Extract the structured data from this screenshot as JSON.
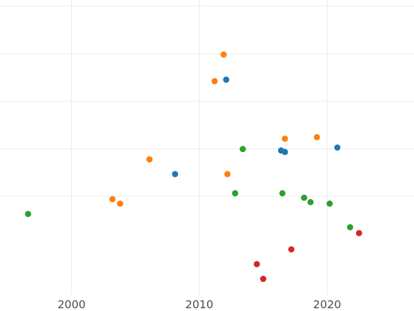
{
  "chart_data": {
    "type": "scatter",
    "title": "",
    "xlabel": "",
    "ylabel": "",
    "xlim": [
      1994.4,
      2026.8
    ],
    "ylim": [
      0,
      10
    ],
    "grid": true,
    "legend": "none",
    "x_ticks": [
      {
        "value": 2000,
        "label": "2000"
      },
      {
        "value": 2010,
        "label": "2010"
      },
      {
        "value": 2020,
        "label": "2020"
      }
    ],
    "y_gridlines": [
      3.35,
      4.96,
      6.57,
      8.18,
      9.79
    ],
    "series": [
      {
        "color": "#1f77b4",
        "points": [
          {
            "x": 2012.1,
            "y": 7.3
          },
          {
            "x": 2008.1,
            "y": 4.1
          },
          {
            "x": 2016.4,
            "y": 4.9
          },
          {
            "x": 2016.7,
            "y": 4.85
          },
          {
            "x": 2020.8,
            "y": 5.0
          }
        ]
      },
      {
        "color": "#ff7f0e",
        "points": [
          {
            "x": 2011.9,
            "y": 8.15
          },
          {
            "x": 2011.2,
            "y": 7.25
          },
          {
            "x": 2016.7,
            "y": 5.3
          },
          {
            "x": 2019.2,
            "y": 5.35
          },
          {
            "x": 2006.1,
            "y": 4.6
          },
          {
            "x": 2012.2,
            "y": 4.1
          },
          {
            "x": 2003.2,
            "y": 3.25
          },
          {
            "x": 2003.8,
            "y": 3.1
          }
        ]
      },
      {
        "color": "#2ca02c",
        "points": [
          {
            "x": 2013.4,
            "y": 4.95
          },
          {
            "x": 2012.8,
            "y": 3.45
          },
          {
            "x": 2016.5,
            "y": 3.45
          },
          {
            "x": 2018.2,
            "y": 3.3
          },
          {
            "x": 2018.7,
            "y": 3.15
          },
          {
            "x": 2020.2,
            "y": 3.1
          },
          {
            "x": 1996.6,
            "y": 2.75
          },
          {
            "x": 2021.8,
            "y": 2.3
          }
        ]
      },
      {
        "color": "#d62728",
        "points": [
          {
            "x": 2022.5,
            "y": 2.1
          },
          {
            "x": 2017.2,
            "y": 1.55
          },
          {
            "x": 2014.5,
            "y": 1.05
          },
          {
            "x": 2015.0,
            "y": 0.55
          }
        ]
      }
    ]
  }
}
